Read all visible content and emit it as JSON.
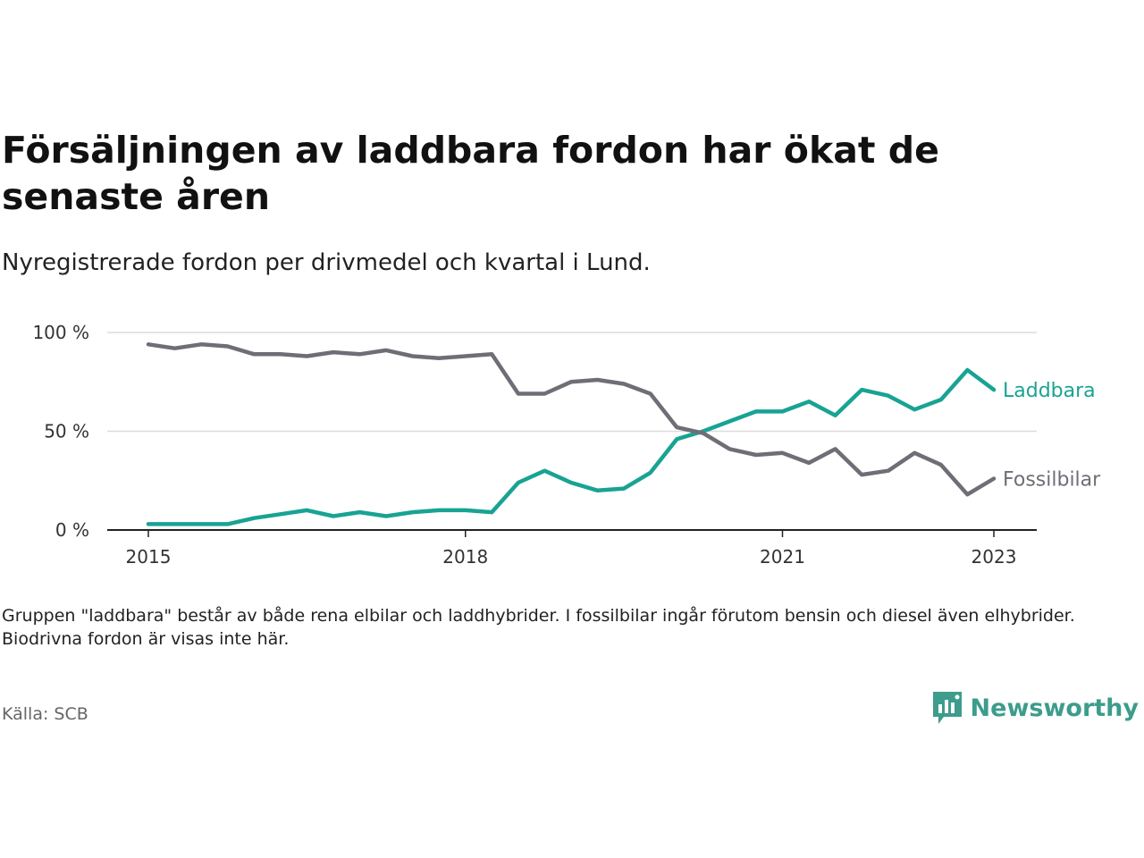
{
  "title": "Försäljningen av laddbara fordon har ökat de senaste åren",
  "subtitle": "Nyregistrerade fordon per drivmedel och kvartal i Lund.",
  "note": "Gruppen \"laddbara\" består av både rena elbilar och laddhybrider. I fossilbilar ingår förutom bensin och diesel även elhybrider. Biodrivna fordon är visas inte här.",
  "source": "Källa: SCB",
  "brand": {
    "name": "Newsworthy",
    "color": "#3d9c8c",
    "icon": "bar-chart-speech-bubble-icon"
  },
  "chart_data": {
    "type": "line",
    "x": [
      "2015 Q1",
      "2015 Q2",
      "2015 Q3",
      "2015 Q4",
      "2016 Q1",
      "2016 Q2",
      "2016 Q3",
      "2016 Q4",
      "2017 Q1",
      "2017 Q2",
      "2017 Q3",
      "2017 Q4",
      "2018 Q1",
      "2018 Q2",
      "2018 Q3",
      "2018 Q4",
      "2019 Q1",
      "2019 Q2",
      "2019 Q3",
      "2019 Q4",
      "2020 Q1",
      "2020 Q2",
      "2020 Q3",
      "2020 Q4",
      "2021 Q1",
      "2021 Q2",
      "2021 Q3",
      "2021 Q4",
      "2022 Q1",
      "2022 Q2",
      "2022 Q3",
      "2022 Q4",
      "2023 Q1"
    ],
    "x_ticks": [
      "2015",
      "2018",
      "2021",
      "2023"
    ],
    "y_ticks": [
      "0 %",
      "50 %",
      "100 %"
    ],
    "ylim": [
      0,
      100
    ],
    "grid": true,
    "series": [
      {
        "name": "Laddbara",
        "color": "#18a393",
        "values": [
          3,
          3,
          3,
          3,
          6,
          8,
          10,
          7,
          9,
          7,
          9,
          10,
          10,
          9,
          24,
          30,
          24,
          20,
          21,
          29,
          46,
          50,
          55,
          60,
          60,
          65,
          58,
          71,
          68,
          61,
          66,
          81,
          71
        ]
      },
      {
        "name": "Fossilbilar",
        "color": "#6e6e76",
        "values": [
          94,
          92,
          94,
          93,
          89,
          89,
          88,
          90,
          89,
          91,
          88,
          87,
          88,
          89,
          69,
          69,
          75,
          76,
          74,
          69,
          52,
          49,
          41,
          38,
          39,
          34,
          41,
          28,
          30,
          39,
          33,
          18,
          26
        ]
      }
    ]
  }
}
